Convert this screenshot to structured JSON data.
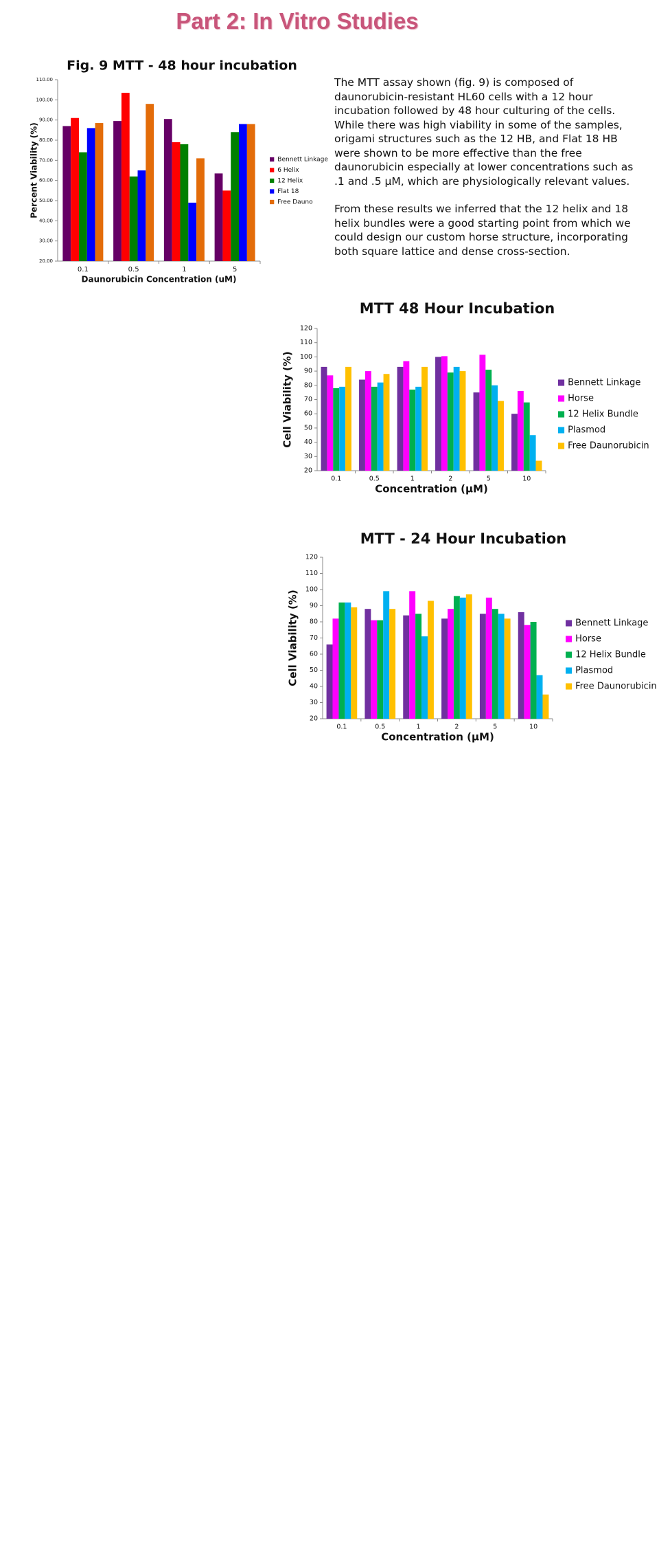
{
  "header": {
    "title": "Part 2: In Vitro Studies"
  },
  "text": {
    "paragraphs": [
      "The MTT assay shown (fig. 9) is composed of daunorubicin-resistant HL60 cells with a 12 hour incubation followed by 48 hour culturing of the cells. While there was high viability in some of the samples, origami structures such as the 12 HB, and Flat 18 HB were shown to be more effective than the free daunorubicin especially at lower concentrations such as .1 and .5 μM, which are physiologically relevant values.",
      "From these results we inferred that the 12 helix and 18 helix bundles were a good starting point from which we could design our custom horse structure, incorporating both square lattice and dense cross-section."
    ]
  },
  "chart_data": [
    {
      "type": "bar",
      "title": "Fig. 9 MTT - 48 hour incubation",
      "x_label": "Daunorubicin Concentration (uM)",
      "y_label": "Percent Viability (%)",
      "categories": [
        "0.1",
        "0.5",
        "1",
        "5"
      ],
      "series": [
        {
          "name": "Bennett Linkage",
          "color": "#660066",
          "values": [
            87,
            89.5,
            90.5,
            63.5
          ]
        },
        {
          "name": "6 Helix",
          "color": "#ff0000",
          "values": [
            91,
            103.5,
            79,
            55
          ]
        },
        {
          "name": "12 Helix",
          "color": "#008000",
          "values": [
            74,
            62,
            78,
            84
          ]
        },
        {
          "name": "Flat 18",
          "color": "#0000ff",
          "values": [
            86,
            65,
            49,
            88
          ]
        },
        {
          "name": "Free Dauno",
          "color": "#e36c09",
          "values": [
            88.5,
            98,
            71,
            88
          ]
        }
      ],
      "ylim": [
        20,
        110
      ],
      "yticks": [
        {
          "value": 20,
          "label": "20.00"
        },
        {
          "value": 30,
          "label": "30.00"
        },
        {
          "value": 40,
          "label": "40.00"
        },
        {
          "value": 50,
          "label": "50.00"
        },
        {
          "value": 60,
          "label": "60.00"
        },
        {
          "value": 70,
          "label": "70.00"
        },
        {
          "value": 80,
          "label": "80.00"
        },
        {
          "value": 90,
          "label": "90.00"
        },
        {
          "value": 100,
          "label": "100.00"
        },
        {
          "value": 110,
          "label": "110.00"
        }
      ],
      "grid": false,
      "legend": "right"
    },
    {
      "type": "bar",
      "title": "MTT 48 Hour Incubation",
      "x_label": "Concentration (μM)",
      "y_label": "Cell Viability (%)",
      "categories": [
        "0.1",
        "0.5",
        "1",
        "2",
        "5",
        "10"
      ],
      "series": [
        {
          "name": "Bennett Linkage",
          "color": "#7030a0",
          "values": [
            93,
            84,
            93,
            100,
            75,
            60
          ]
        },
        {
          "name": "Horse",
          "color": "#ff00ff",
          "values": [
            87,
            90,
            97,
            100.5,
            101.5,
            76
          ]
        },
        {
          "name": "12 Helix Bundle",
          "color": "#00b050",
          "values": [
            78,
            79,
            77,
            89,
            91,
            68
          ]
        },
        {
          "name": "Plasmod",
          "color": "#00b0f0",
          "values": [
            79,
            82,
            79,
            93,
            80,
            45
          ]
        },
        {
          "name": "Free Daunorubicin",
          "color": "#ffc000",
          "values": [
            93,
            88,
            93,
            90,
            69,
            27
          ]
        }
      ],
      "ylim": [
        20,
        120
      ],
      "yticks": [
        20,
        30,
        40,
        50,
        60,
        70,
        80,
        90,
        100,
        110,
        120
      ],
      "grid": false,
      "legend": "right"
    },
    {
      "type": "bar",
      "title": "MTT - 24 Hour Incubation",
      "x_label": "Concentration (μM)",
      "y_label": "Cell Viability (%)",
      "categories": [
        "0.1",
        "0.5",
        "1",
        "2",
        "5",
        "10"
      ],
      "series": [
        {
          "name": "Bennett Linkage",
          "color": "#7030a0",
          "values": [
            66,
            88,
            84,
            82,
            85,
            86
          ]
        },
        {
          "name": "Horse",
          "color": "#ff00ff",
          "values": [
            82,
            81,
            99,
            88,
            95,
            78
          ]
        },
        {
          "name": "12 Helix Bundle",
          "color": "#00b050",
          "values": [
            92,
            81,
            85,
            96,
            88,
            80
          ]
        },
        {
          "name": "Plasmod",
          "color": "#00b0f0",
          "values": [
            92,
            99,
            71,
            95,
            85,
            47
          ]
        },
        {
          "name": "Free Daunorubicin",
          "color": "#ffc000",
          "values": [
            89,
            88,
            93,
            97,
            82,
            35
          ]
        }
      ],
      "ylim": [
        20,
        120
      ],
      "yticks": [
        20,
        30,
        40,
        50,
        60,
        70,
        80,
        90,
        100,
        110,
        120
      ],
      "grid": false,
      "legend": "right"
    }
  ]
}
